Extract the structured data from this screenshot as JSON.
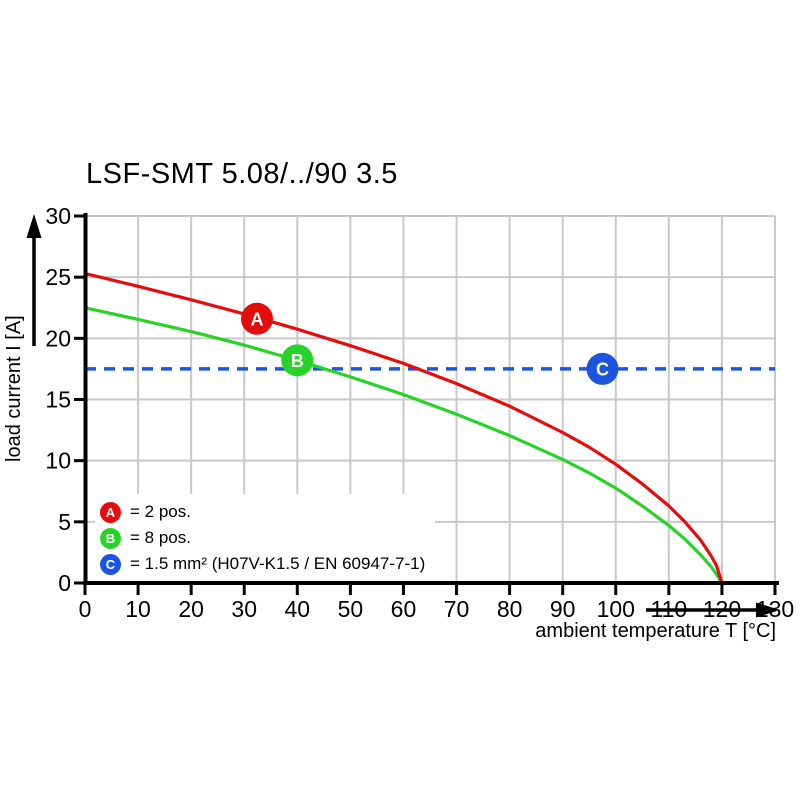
{
  "chart_data": {
    "type": "line",
    "title": "LSF-SMT 5.08/../90 3.5",
    "xlabel": "ambient temperature T [°C]",
    "ylabel": "load current I [A]",
    "xlim": [
      0,
      130
    ],
    "ylim": [
      0,
      30
    ],
    "xticks": [
      0,
      10,
      20,
      30,
      40,
      50,
      60,
      70,
      80,
      90,
      100,
      110,
      120,
      130
    ],
    "yticks": [
      0,
      5,
      10,
      15,
      20,
      25,
      30
    ],
    "grid": true,
    "legend_position": "inside-bottom-left",
    "colors": {
      "series_a": "#e60c0c",
      "series_b": "#27d327",
      "series_c": "#1c55dd",
      "grid": "#c9c9c9",
      "axis": "#000000",
      "marker_text": "#ffffff"
    },
    "series": [
      {
        "id": "A",
        "legend": "= 2 pos.",
        "color": "#e60c0c",
        "style": "solid",
        "x": [
          0,
          10,
          20,
          30,
          40,
          50,
          60,
          70,
          80,
          90,
          95,
          100,
          105,
          110,
          113,
          116,
          118,
          119,
          120
        ],
        "y": [
          25.3,
          24.25,
          23.15,
          22.0,
          20.75,
          19.4,
          17.95,
          16.3,
          14.45,
          12.3,
          11.1,
          9.7,
          8.1,
          6.3,
          5.0,
          3.5,
          2.2,
          1.4,
          0
        ]
      },
      {
        "id": "B",
        "legend": "= 8 pos.",
        "color": "#27d327",
        "style": "solid",
        "x": [
          0,
          10,
          20,
          30,
          40,
          50,
          60,
          70,
          80,
          90,
          95,
          100,
          105,
          110,
          113,
          116,
          118,
          119,
          120
        ],
        "y": [
          22.5,
          21.55,
          20.55,
          19.45,
          18.2,
          16.85,
          15.4,
          13.8,
          12.05,
          10.1,
          9.0,
          7.75,
          6.3,
          4.7,
          3.6,
          2.3,
          1.3,
          0.7,
          0
        ]
      },
      {
        "id": "C",
        "legend": "= 1.5 mm² (H07V-K1.5 / EN 60947-7-1)",
        "color": "#1c55dd",
        "style": "dashed",
        "x": [
          0,
          130
        ],
        "y": [
          17.5,
          17.5
        ]
      }
    ],
    "markers": [
      {
        "label": "A",
        "x": 32.4,
        "y": 21.6,
        "color": "#e60c0c"
      },
      {
        "label": "B",
        "x": 40.0,
        "y": 18.2,
        "color": "#27d327"
      },
      {
        "label": "C",
        "x": 97.5,
        "y": 17.5,
        "color": "#1c55dd"
      }
    ]
  }
}
